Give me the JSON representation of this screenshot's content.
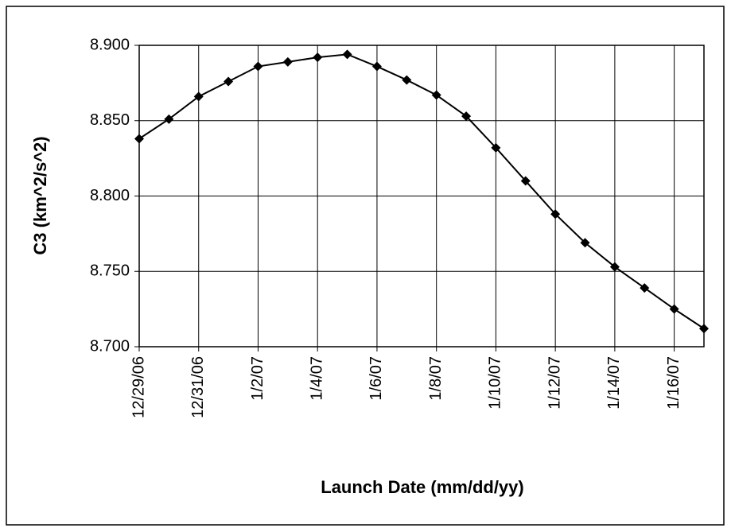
{
  "chart_data": {
    "type": "line",
    "x_label": "Launch Date (mm/dd/yy)",
    "y_label": "C3 (km^2/s^2)",
    "categories": [
      "12/29/06",
      null,
      "12/31/06",
      null,
      "1/2/07",
      null,
      "1/4/07",
      null,
      "1/6/07",
      null,
      "1/8/07",
      null,
      "1/10/07",
      null,
      "1/12/07",
      null,
      "1/14/07",
      null,
      "1/16/07",
      null
    ],
    "series": [
      {
        "name": "C3",
        "color": "#000000",
        "values": [
          8.838,
          8.851,
          8.866,
          8.876,
          8.886,
          8.889,
          8.892,
          8.894,
          8.886,
          8.877,
          8.867,
          8.853,
          8.832,
          8.81,
          8.788,
          8.769,
          8.753,
          8.739,
          8.725,
          8.712
        ]
      }
    ],
    "ylim": [
      8.7,
      8.9
    ],
    "yticks": [
      {
        "value": 8.7,
        "label": "8.700"
      },
      {
        "value": 8.75,
        "label": "8.750"
      },
      {
        "value": 8.8,
        "label": "8.800"
      },
      {
        "value": 8.85,
        "label": "8.850"
      },
      {
        "value": 8.9,
        "label": "8.900"
      }
    ],
    "grid": true
  }
}
